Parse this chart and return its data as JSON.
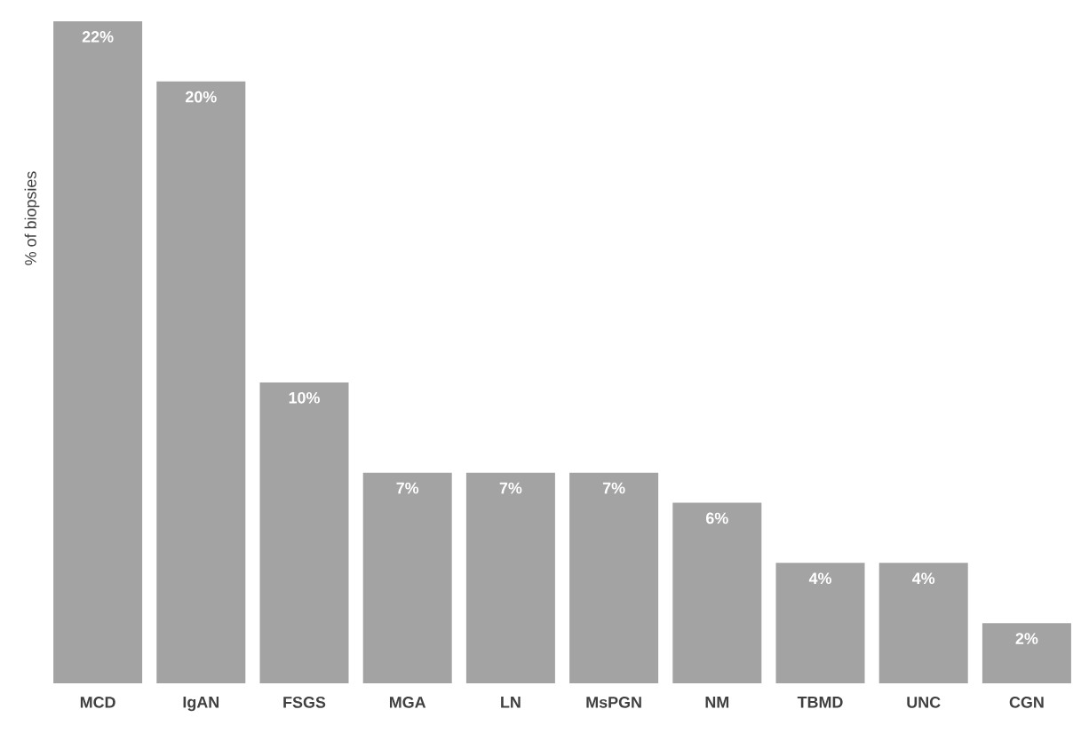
{
  "chart_data": {
    "type": "bar",
    "ylabel": "% of biopsies",
    "categories": [
      "MCD",
      "IgAN",
      "FSGS",
      "MGA",
      "LN",
      "MsPGN",
      "NM",
      "TBMD",
      "UNC",
      "CGN"
    ],
    "values": [
      22,
      20,
      10,
      7,
      7,
      7,
      6,
      4,
      4,
      2
    ],
    "value_labels": [
      "22%",
      "20%",
      "10%",
      "7%",
      "7%",
      "7%",
      "6%",
      "4%",
      "4%",
      "2%"
    ],
    "color": "#a3a3a3"
  }
}
